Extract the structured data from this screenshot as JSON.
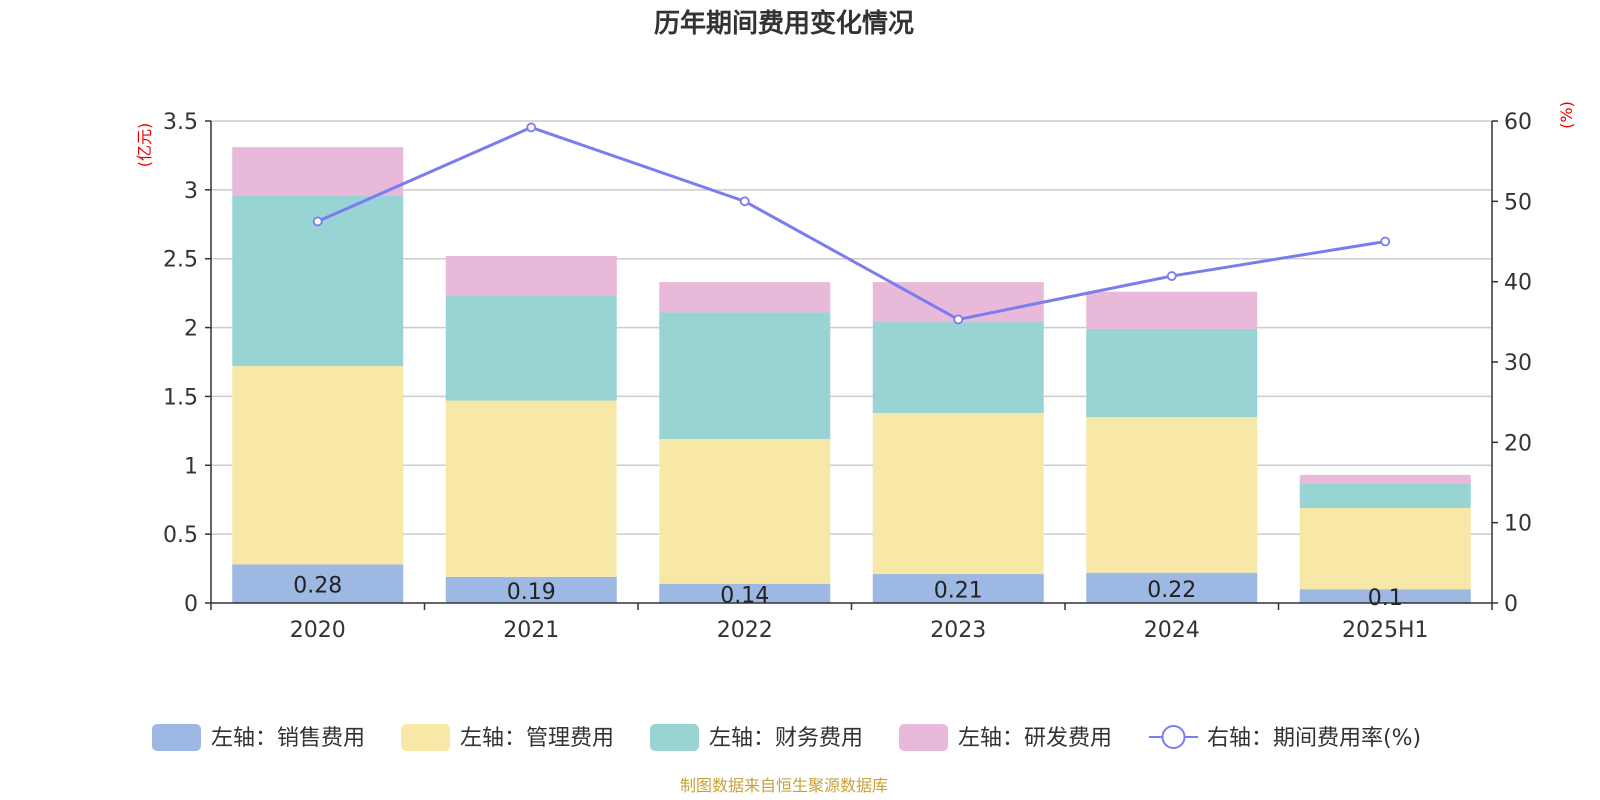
{
  "chart_data": {
    "type": "bar",
    "title": "历年期间费用变化情况",
    "categories": [
      "2020",
      "2021",
      "2022",
      "2023",
      "2024",
      "2025H1"
    ],
    "left_axis": {
      "unit_label": "(亿元)",
      "range": [
        0,
        3.5
      ],
      "ticks": [
        "0",
        "0.5",
        "1",
        "1.5",
        "2",
        "2.5",
        "3",
        "3.5"
      ],
      "tick_values": [
        0,
        0.5,
        1,
        1.5,
        2,
        2.5,
        3,
        3.5
      ]
    },
    "right_axis": {
      "unit_label": "(%)",
      "range": [
        0,
        60
      ],
      "ticks": [
        "0",
        "10",
        "20",
        "30",
        "40",
        "50",
        "60"
      ],
      "tick_values": [
        0,
        10,
        20,
        30,
        40,
        50,
        60
      ]
    },
    "stacked": true,
    "grid": true,
    "legend_position": "bottom",
    "series": [
      {
        "name": "左轴：销售费用",
        "axis": "left",
        "color": "#9cb8e3",
        "values": [
          0.28,
          0.19,
          0.14,
          0.21,
          0.22,
          0.1
        ],
        "labels": [
          "0.28",
          "0.19",
          "0.14",
          "0.21",
          "0.22",
          "0.1"
        ]
      },
      {
        "name": "左轴：管理费用",
        "axis": "left",
        "color": "#f8e8a8",
        "values": [
          1.44,
          1.28,
          1.05,
          1.17,
          1.13,
          0.59
        ]
      },
      {
        "name": "左轴：财务费用",
        "axis": "left",
        "color": "#99d4d5",
        "values": [
          1.24,
          0.76,
          0.92,
          0.66,
          0.64,
          0.18
        ]
      },
      {
        "name": "左轴：研发费用",
        "axis": "left",
        "color": "#e8b9d8",
        "values": [
          0.35,
          0.29,
          0.22,
          0.29,
          0.27,
          0.06
        ]
      }
    ],
    "line_series": {
      "name": "右轴：期间费用率(%)",
      "axis": "right",
      "color": "#7b7cee",
      "values": [
        47.5,
        59.2,
        50.0,
        35.3,
        40.7,
        45.0
      ]
    },
    "source_note": "制图数据来自恒生聚源数据库"
  }
}
